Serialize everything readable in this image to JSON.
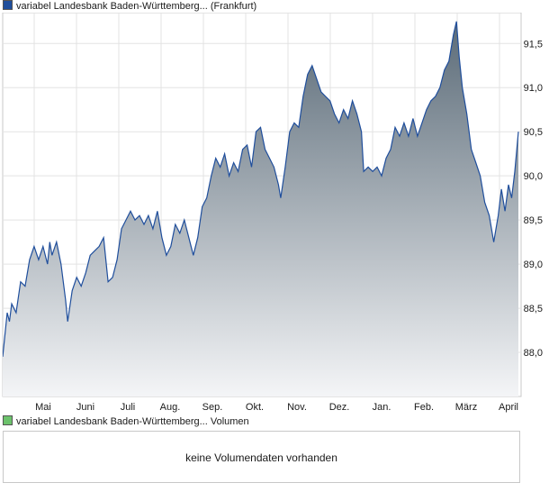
{
  "legend": {
    "price_label": "variabel Landesbank Baden-Württemberg... (Frankfurt)",
    "price_color": "#1f4e9c",
    "volume_label": "variabel Landesbank Baden-Württemberg... Volumen",
    "volume_color": "#6cc26c"
  },
  "volume": {
    "message": "keine Volumendaten vorhanden"
  },
  "chart_data": {
    "type": "area",
    "title": "",
    "xlabel": "",
    "ylabel": "",
    "x_tick_labels": [
      "Mai",
      "Juni",
      "Juli",
      "Aug.",
      "Sep.",
      "Okt.",
      "Nov.",
      "Dez.",
      "Jan.",
      "Feb.",
      "März",
      "April"
    ],
    "y_ticks": [
      "88,0",
      "88,5",
      "89,0",
      "89,5",
      "90,0",
      "90,5",
      "91,0",
      "91,5"
    ],
    "ylim": [
      87.5,
      91.85
    ],
    "y_axis_side": "right",
    "grid": true,
    "line_color": "#1f4e9c",
    "fill_gradient": [
      "#5b6b78",
      "#f4f5f7"
    ],
    "x_range_months": [
      0,
      11.5
    ],
    "series": [
      {
        "values": [
          [
            0.0,
            87.95
          ],
          [
            0.05,
            88.2
          ],
          [
            0.1,
            88.45
          ],
          [
            0.15,
            88.35
          ],
          [
            0.2,
            88.55
          ],
          [
            0.3,
            88.45
          ],
          [
            0.4,
            88.8
          ],
          [
            0.5,
            88.75
          ],
          [
            0.6,
            89.05
          ],
          [
            0.7,
            89.2
          ],
          [
            0.8,
            89.05
          ],
          [
            0.9,
            89.2
          ],
          [
            1.0,
            89.0
          ],
          [
            1.05,
            89.25
          ],
          [
            1.1,
            89.1
          ],
          [
            1.2,
            89.25
          ],
          [
            1.3,
            89.0
          ],
          [
            1.4,
            88.6
          ],
          [
            1.45,
            88.35
          ],
          [
            1.55,
            88.7
          ],
          [
            1.65,
            88.85
          ],
          [
            1.75,
            88.75
          ],
          [
            1.85,
            88.9
          ],
          [
            1.95,
            89.1
          ],
          [
            2.05,
            89.15
          ],
          [
            2.15,
            89.2
          ],
          [
            2.25,
            89.3
          ],
          [
            2.35,
            88.8
          ],
          [
            2.45,
            88.85
          ],
          [
            2.55,
            89.05
          ],
          [
            2.65,
            89.4
          ],
          [
            2.75,
            89.5
          ],
          [
            2.85,
            89.6
          ],
          [
            2.95,
            89.5
          ],
          [
            3.05,
            89.55
          ],
          [
            3.15,
            89.45
          ],
          [
            3.25,
            89.55
          ],
          [
            3.35,
            89.4
          ],
          [
            3.45,
            89.6
          ],
          [
            3.55,
            89.3
          ],
          [
            3.65,
            89.1
          ],
          [
            3.75,
            89.2
          ],
          [
            3.85,
            89.45
          ],
          [
            3.95,
            89.35
          ],
          [
            4.05,
            89.5
          ],
          [
            4.15,
            89.3
          ],
          [
            4.25,
            89.1
          ],
          [
            4.35,
            89.3
          ],
          [
            4.45,
            89.65
          ],
          [
            4.55,
            89.75
          ],
          [
            4.65,
            90.0
          ],
          [
            4.75,
            90.2
          ],
          [
            4.85,
            90.1
          ],
          [
            4.95,
            90.25
          ],
          [
            5.05,
            90.0
          ],
          [
            5.15,
            90.15
          ],
          [
            5.25,
            90.05
          ],
          [
            5.35,
            90.3
          ],
          [
            5.45,
            90.35
          ],
          [
            5.55,
            90.1
          ],
          [
            5.65,
            90.5
          ],
          [
            5.75,
            90.55
          ],
          [
            5.85,
            90.3
          ],
          [
            5.95,
            90.2
          ],
          [
            6.05,
            90.1
          ],
          [
            6.15,
            89.9
          ],
          [
            6.2,
            89.75
          ],
          [
            6.3,
            90.1
          ],
          [
            6.4,
            90.5
          ],
          [
            6.5,
            90.6
          ],
          [
            6.6,
            90.55
          ],
          [
            6.7,
            90.9
          ],
          [
            6.8,
            91.15
          ],
          [
            6.9,
            91.25
          ],
          [
            7.0,
            91.1
          ],
          [
            7.1,
            90.95
          ],
          [
            7.2,
            90.9
          ],
          [
            7.3,
            90.85
          ],
          [
            7.4,
            90.7
          ],
          [
            7.5,
            90.6
          ],
          [
            7.6,
            90.75
          ],
          [
            7.7,
            90.65
          ],
          [
            7.8,
            90.85
          ],
          [
            7.9,
            90.7
          ],
          [
            8.0,
            90.5
          ],
          [
            8.05,
            90.05
          ],
          [
            8.15,
            90.1
          ],
          [
            8.25,
            90.05
          ],
          [
            8.35,
            90.1
          ],
          [
            8.45,
            90.0
          ],
          [
            8.55,
            90.2
          ],
          [
            8.65,
            90.3
          ],
          [
            8.75,
            90.55
          ],
          [
            8.85,
            90.45
          ],
          [
            8.95,
            90.6
          ],
          [
            9.05,
            90.45
          ],
          [
            9.15,
            90.65
          ],
          [
            9.25,
            90.45
          ],
          [
            9.35,
            90.6
          ],
          [
            9.45,
            90.75
          ],
          [
            9.55,
            90.85
          ],
          [
            9.65,
            90.9
          ],
          [
            9.75,
            91.0
          ],
          [
            9.85,
            91.2
          ],
          [
            9.95,
            91.3
          ],
          [
            10.05,
            91.6
          ],
          [
            10.12,
            91.75
          ],
          [
            10.18,
            91.35
          ],
          [
            10.25,
            91.0
          ],
          [
            10.35,
            90.7
          ],
          [
            10.45,
            90.3
          ],
          [
            10.55,
            90.15
          ],
          [
            10.65,
            90.0
          ],
          [
            10.75,
            89.7
          ],
          [
            10.85,
            89.55
          ],
          [
            10.95,
            89.25
          ],
          [
            11.05,
            89.55
          ],
          [
            11.12,
            89.85
          ],
          [
            11.2,
            89.6
          ],
          [
            11.28,
            89.9
          ],
          [
            11.35,
            89.75
          ],
          [
            11.42,
            90.05
          ],
          [
            11.5,
            90.5
          ]
        ]
      }
    ]
  }
}
